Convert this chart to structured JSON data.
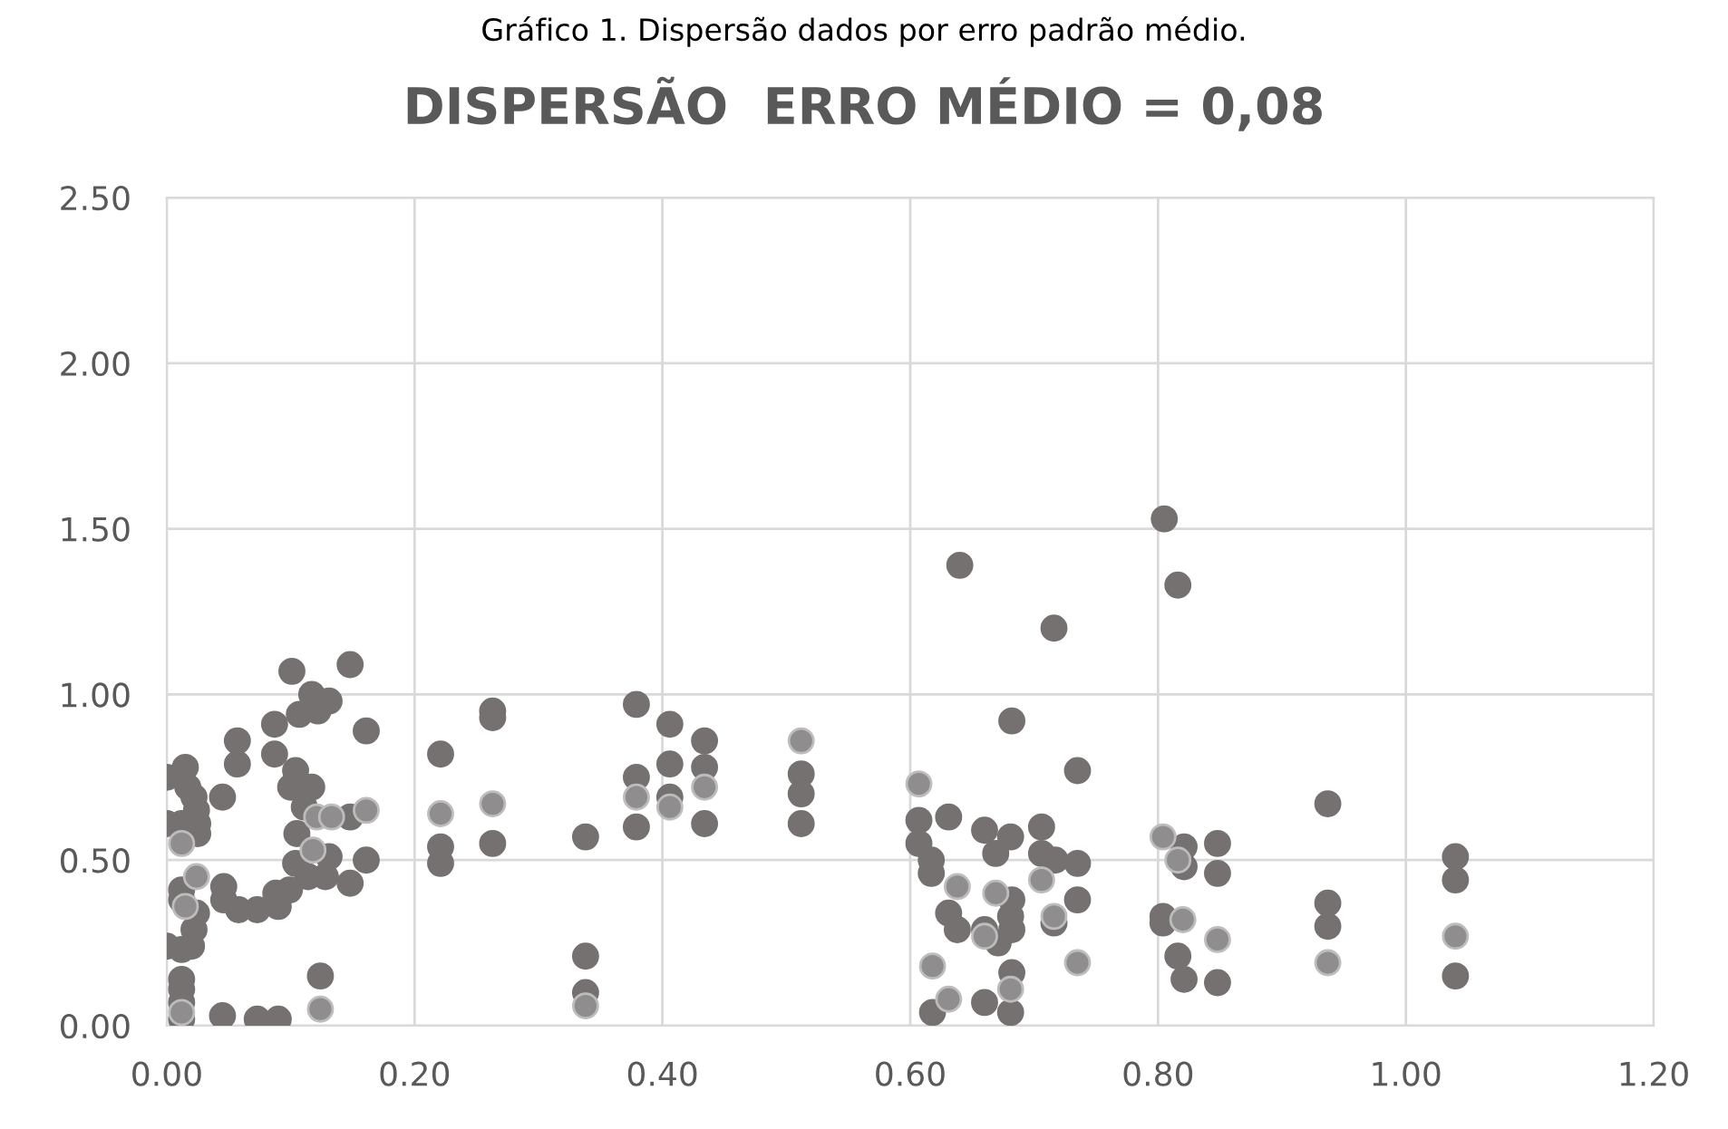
{
  "chart_data": {
    "type": "scatter",
    "title": "DISPERSÃO  ERRO MÉDIO = 0,08",
    "annotations": [
      "Gráfico 1. Dispersão dados por erro padrão médio."
    ],
    "xlim": [
      0,
      1.2
    ],
    "ylim": [
      0,
      2.5
    ],
    "xticks": [
      {
        "value": 0,
        "label": "0.00"
      },
      {
        "value": 0.2,
        "label": "0.20"
      },
      {
        "value": 0.4,
        "label": "0.40"
      },
      {
        "value": 0.6,
        "label": "0.60"
      },
      {
        "value": 0.8,
        "label": "0.80"
      },
      {
        "value": 1.0,
        "label": "1.00"
      },
      {
        "value": 1.2,
        "label": "1.20"
      }
    ],
    "yticks": [
      {
        "value": 0,
        "label": "0.00"
      },
      {
        "value": 0.5,
        "label": "0.50"
      },
      {
        "value": 1.0,
        "label": "1.00"
      },
      {
        "value": 1.5,
        "label": "1.50"
      },
      {
        "value": 2.0,
        "label": "2.00"
      },
      {
        "value": 2.5,
        "label": "2.50"
      }
    ],
    "grid": true,
    "legend": false,
    "marker": "circle",
    "series": [
      {
        "color": "#767171",
        "x": [
          0.101,
          0.148,
          0.117,
          0.131,
          0.107,
          0.122,
          0.087,
          0.161,
          0.263,
          0.263,
          0.221,
          0.057,
          0.057,
          0.087,
          0.0,
          0.015,
          0.017,
          0.022,
          0.024,
          0.0,
          0.012,
          0.025,
          0.025,
          0.045,
          0.104,
          0.117,
          0.1,
          0.111,
          0.148,
          0.105,
          0.131,
          0.161,
          0.104,
          0.114,
          0.128,
          0.148,
          0.099,
          0.088,
          0.073,
          0.09,
          0.058,
          0.046,
          0.046,
          0.012,
          0.012,
          0.024,
          0.022,
          0.0,
          0.012,
          0.02,
          0.012,
          0.012,
          0.012,
          0.012,
          0.045,
          0.073,
          0.09,
          0.124,
          0.221,
          0.221,
          0.263,
          0.379,
          0.406,
          0.434,
          0.379,
          0.379,
          0.406,
          0.406,
          0.434,
          0.434,
          0.512,
          0.512,
          0.512,
          0.338,
          0.338,
          0.338,
          0.716,
          0.682,
          0.735,
          0.607,
          0.607,
          0.617,
          0.617,
          0.631,
          0.66,
          0.681,
          0.669,
          0.706,
          0.706,
          0.717,
          0.735,
          0.735,
          0.716,
          0.631,
          0.638,
          0.682,
          0.681,
          0.682,
          0.66,
          0.671,
          0.682,
          0.618,
          0.66,
          0.681,
          0.805,
          0.816,
          0.64,
          0.937,
          0.821,
          0.821,
          0.848,
          0.848,
          1.04,
          1.04,
          0.804,
          0.804,
          0.816,
          0.821,
          0.848,
          0.937,
          0.937,
          1.04
        ],
        "values": [
          1.07,
          1.09,
          1.0,
          0.98,
          0.94,
          0.95,
          0.91,
          0.89,
          0.95,
          0.93,
          0.82,
          0.86,
          0.79,
          0.82,
          0.75,
          0.78,
          0.72,
          0.69,
          0.65,
          0.61,
          0.61,
          0.61,
          0.58,
          0.69,
          0.77,
          0.72,
          0.72,
          0.66,
          0.63,
          0.58,
          0.51,
          0.5,
          0.49,
          0.45,
          0.45,
          0.43,
          0.41,
          0.4,
          0.35,
          0.36,
          0.35,
          0.42,
          0.38,
          0.41,
          0.38,
          0.34,
          0.29,
          0.24,
          0.23,
          0.24,
          0.14,
          0.11,
          0.07,
          0.02,
          0.03,
          0.02,
          0.02,
          0.15,
          0.54,
          0.49,
          0.55,
          0.97,
          0.91,
          0.86,
          0.75,
          0.6,
          0.79,
          0.69,
          0.78,
          0.61,
          0.76,
          0.7,
          0.61,
          0.57,
          0.21,
          0.1,
          1.2,
          0.92,
          0.77,
          0.62,
          0.55,
          0.5,
          0.46,
          0.63,
          0.59,
          0.57,
          0.52,
          0.6,
          0.52,
          0.5,
          0.49,
          0.38,
          0.31,
          0.34,
          0.29,
          0.38,
          0.33,
          0.29,
          0.29,
          0.25,
          0.16,
          0.04,
          0.07,
          0.04,
          1.53,
          1.33,
          1.39,
          0.67,
          0.54,
          0.48,
          0.55,
          0.46,
          0.51,
          0.44,
          0.33,
          0.31,
          0.21,
          0.14,
          0.13,
          0.37,
          0.3,
          0.15
        ]
      },
      {
        "color": "#8f8d8d",
        "x": [
          0.012,
          0.121,
          0.133,
          0.161,
          0.118,
          0.024,
          0.015,
          0.012,
          0.124,
          0.221,
          0.263,
          0.379,
          0.406,
          0.434,
          0.512,
          0.338,
          0.607,
          0.706,
          0.716,
          0.638,
          0.669,
          0.66,
          0.735,
          0.618,
          0.681,
          0.631,
          0.804,
          0.816,
          0.82,
          0.848,
          0.937,
          1.04
        ],
        "values": [
          0.55,
          0.63,
          0.63,
          0.65,
          0.53,
          0.45,
          0.36,
          0.04,
          0.05,
          0.64,
          0.67,
          0.69,
          0.66,
          0.72,
          0.86,
          0.06,
          0.73,
          0.44,
          0.33,
          0.42,
          0.4,
          0.27,
          0.19,
          0.18,
          0.11,
          0.08,
          0.57,
          0.5,
          0.32,
          0.26,
          0.19,
          0.27
        ]
      }
    ]
  }
}
